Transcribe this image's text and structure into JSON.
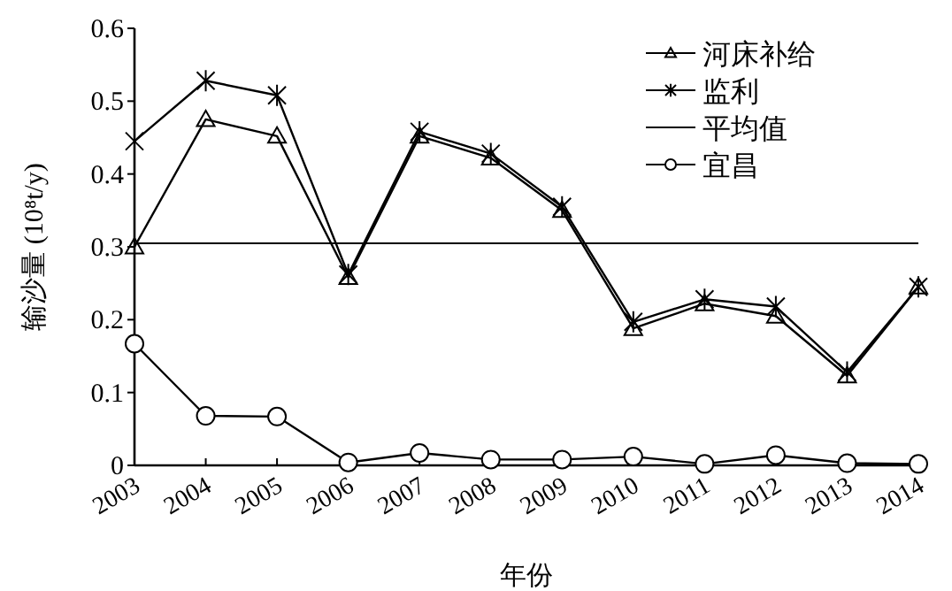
{
  "chart_data": {
    "type": "line",
    "xlabel": "年份",
    "ylabel": "输沙量 (10⁸t/y)",
    "categories": [
      "2003",
      "2004",
      "2005",
      "2006",
      "2007",
      "2008",
      "2009",
      "2010",
      "2011",
      "2012",
      "2013",
      "2014"
    ],
    "series": [
      {
        "name": "河床补给",
        "color": "#000000",
        "marker": "triangle",
        "values": [
          0.3,
          0.475,
          0.452,
          0.258,
          0.452,
          0.422,
          0.35,
          0.188,
          0.222,
          0.205,
          0.123,
          0.245
        ]
      },
      {
        "name": "监利",
        "color": "#000000",
        "marker": "cross",
        "values": [
          0.445,
          0.528,
          0.508,
          0.262,
          0.458,
          0.428,
          0.355,
          0.197,
          0.228,
          0.218,
          0.128,
          0.245
        ]
      },
      {
        "name": "宜昌",
        "color": "#000000",
        "marker": "circle",
        "values": [
          0.167,
          0.068,
          0.067,
          0.004,
          0.017,
          0.008,
          0.008,
          0.012,
          0.002,
          0.014,
          0.003,
          0.002
        ]
      }
    ],
    "ref_lines": [
      {
        "axis": "y",
        "value": 0.305,
        "label": "平均值",
        "color": "#000000",
        "line_style": "solid"
      }
    ],
    "ylim": [
      0,
      0.6
    ],
    "yticks": [
      0,
      0.1,
      0.2,
      0.3,
      0.4,
      0.5,
      0.6
    ],
    "grid": false,
    "legend": "top right"
  }
}
